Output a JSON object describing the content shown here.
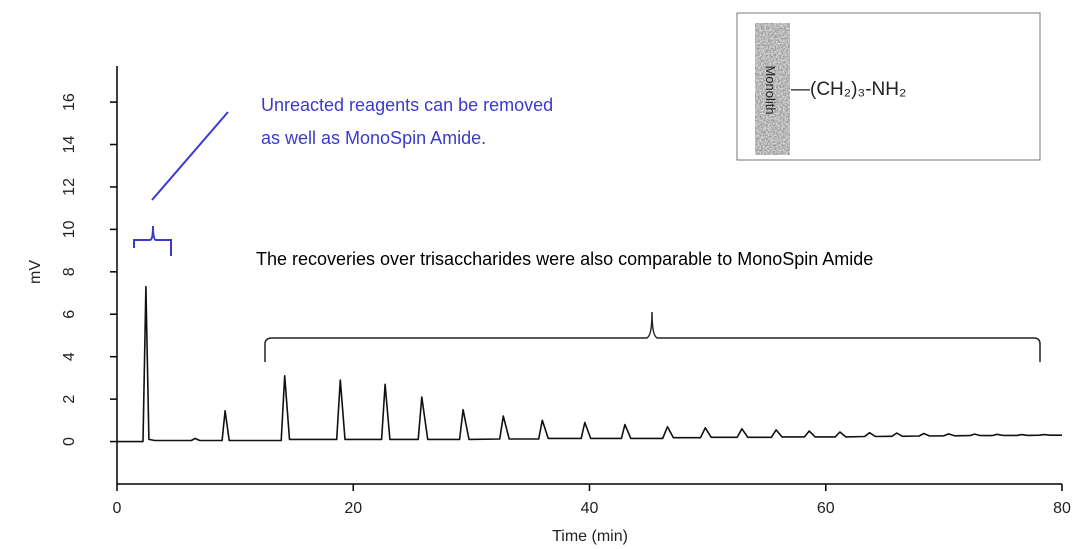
{
  "chart_data": {
    "type": "line",
    "x_label": "Time (min)",
    "y_label": "mV",
    "xlim": [
      0,
      80
    ],
    "xticks": [
      0,
      20,
      40,
      60,
      80
    ],
    "ylim": [
      -2,
      17.7
    ],
    "yticks": [
      0,
      2,
      4,
      6,
      8,
      10,
      12,
      14,
      16
    ],
    "color": "#111111",
    "x": [
      0,
      2.2,
      2.45,
      2.7,
      3.2,
      6.3,
      6.6,
      7,
      8.9,
      9.15,
      9.5,
      13.9,
      14.2,
      14.6,
      18.6,
      18.9,
      19.3,
      22.4,
      22.7,
      23.1,
      25.5,
      25.8,
      26.3,
      29,
      29.3,
      29.8,
      32.4,
      32.7,
      33.2,
      35.7,
      36,
      36.5,
      39.3,
      39.6,
      40.1,
      42.7,
      43,
      43.5,
      46.2,
      46.6,
      47.1,
      49.4,
      49.8,
      50.3,
      52.5,
      52.9,
      53.4,
      55.4,
      55.8,
      56.3,
      58.2,
      58.6,
      59.1,
      60.8,
      61.2,
      61.7,
      63.3,
      63.7,
      64.2,
      65.6,
      66,
      66.5,
      67.9,
      68.3,
      68.8,
      70,
      70.4,
      70.9,
      72.2,
      72.6,
      73.1,
      74.1,
      74.5,
      75,
      76.2,
      76.6,
      77.1,
      78.1,
      78.5,
      79,
      80
    ],
    "values": [
      0,
      0,
      7.3,
      0.1,
      0.05,
      0.05,
      0.15,
      0.05,
      0.05,
      1.45,
      0.05,
      0.05,
      3.1,
      0.1,
      0.1,
      2.9,
      0.1,
      0.1,
      2.7,
      0.1,
      0.1,
      2.1,
      0.1,
      0.1,
      1.5,
      0.1,
      0.12,
      1.2,
      0.12,
      0.12,
      1.0,
      0.15,
      0.15,
      0.9,
      0.15,
      0.15,
      0.8,
      0.15,
      0.15,
      0.7,
      0.18,
      0.18,
      0.65,
      0.2,
      0.2,
      0.6,
      0.2,
      0.2,
      0.55,
      0.22,
      0.22,
      0.5,
      0.22,
      0.22,
      0.45,
      0.22,
      0.24,
      0.42,
      0.24,
      0.25,
      0.4,
      0.25,
      0.26,
      0.38,
      0.26,
      0.27,
      0.36,
      0.27,
      0.28,
      0.35,
      0.28,
      0.28,
      0.34,
      0.29,
      0.29,
      0.33,
      0.29,
      0.3,
      0.33,
      0.3,
      0.3
    ],
    "annotations": {
      "reagents": [
        "Unreacted reagents can be removed",
        "as well as MonoSpin Amide."
      ],
      "recoveries": "The recoveries over trisaccharides were also comparable to MonoSpin Amide",
      "inset_label": "Monolith",
      "inset_group": "—(CH₂)₃-NH₂"
    }
  }
}
